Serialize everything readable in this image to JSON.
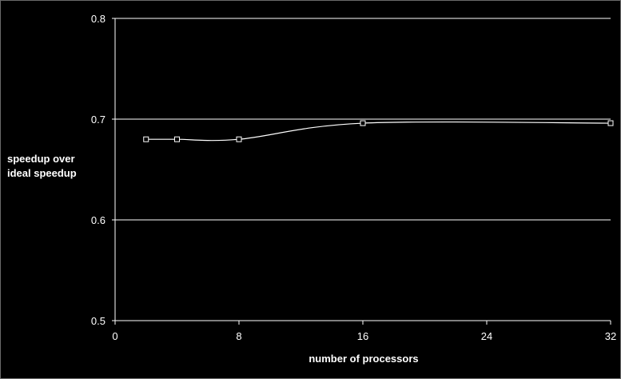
{
  "chart_data": {
    "type": "line",
    "title": "",
    "xlabel": "number of processors",
    "ylabel_lines": [
      "speedup over",
      "ideal speedup"
    ],
    "xlim": [
      0,
      32
    ],
    "ylim": [
      0.5,
      0.8
    ],
    "x_ticks": [
      0,
      8,
      16,
      24,
      32
    ],
    "y_ticks": [
      0.5,
      0.6,
      0.7,
      0.8
    ],
    "x_tick_labels": [
      "0",
      "8",
      "16",
      "24",
      "32"
    ],
    "y_tick_labels": [
      "0.5",
      "0.6",
      "0.7",
      "0.8"
    ],
    "grid": "horizontal",
    "legend": "none",
    "smoothed": true,
    "marker": "hollow-square",
    "series": [
      {
        "x": [
          2,
          4,
          8,
          16,
          32
        ],
        "values": [
          0.68,
          0.68,
          0.68,
          0.696,
          0.696
        ]
      }
    ],
    "colors": {
      "background": "#000000",
      "line": "#ffffff",
      "grid": "#ffffff"
    }
  }
}
